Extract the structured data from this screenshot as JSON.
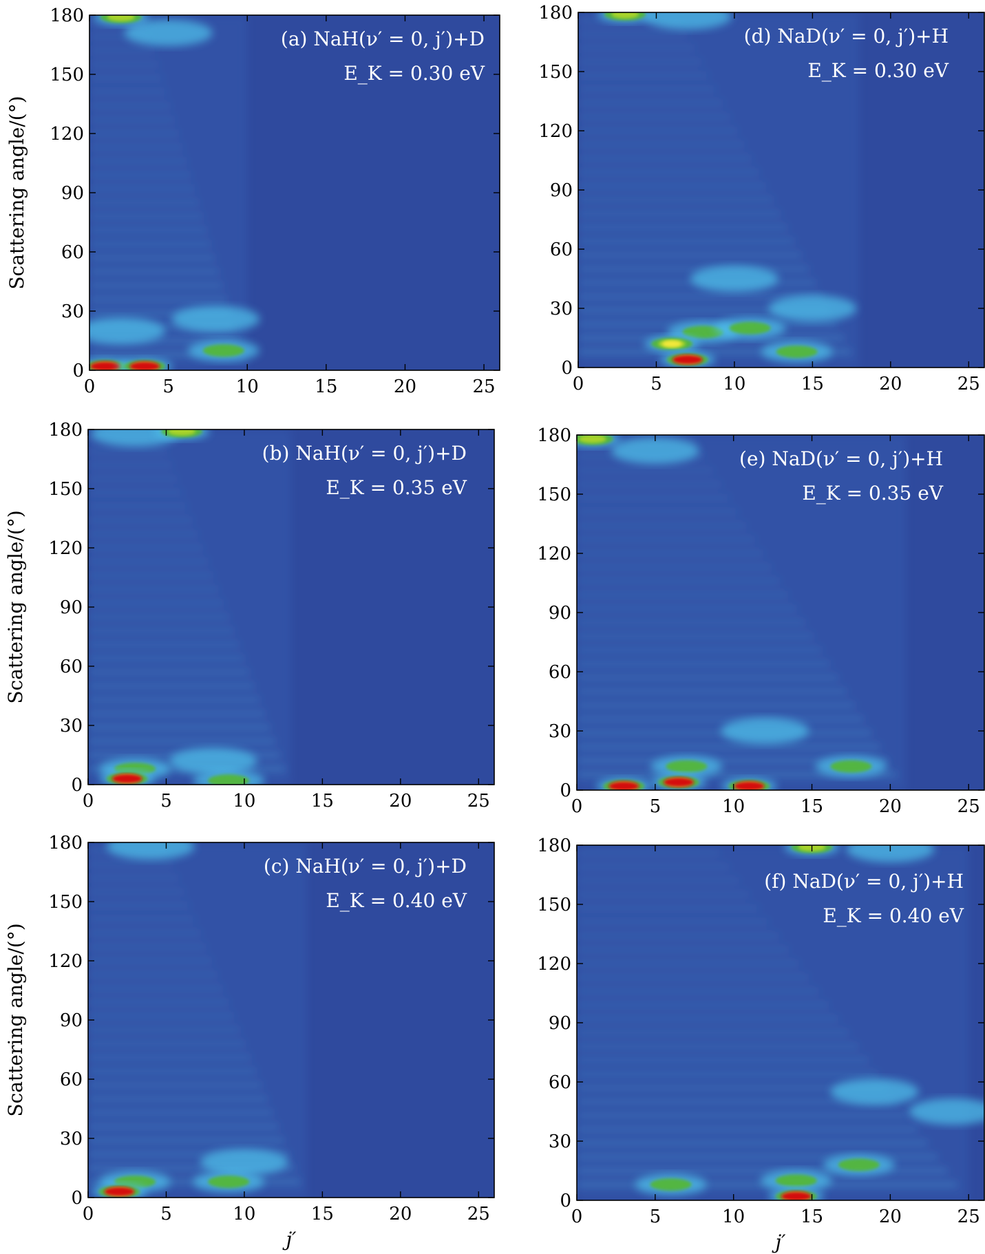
{
  "chart_data": [
    {
      "type": "heatmap",
      "panel": "a",
      "label": "(a) NaH(ν′ = 0, j′)+D",
      "energy_label": "E_K = 0.30 eV",
      "xlabel": "",
      "ylabel": "Scattering angle/(°)",
      "xlim": [
        0,
        26
      ],
      "ylim": [
        0,
        180
      ],
      "xticks": [
        0,
        5,
        10,
        15,
        20,
        25
      ],
      "yticks": [
        0,
        30,
        60,
        90,
        120,
        150,
        180
      ],
      "x_extent_of_signal": 10,
      "hotspots": [
        {
          "j": 1,
          "angle": 2,
          "level": "red"
        },
        {
          "j": 3.5,
          "angle": 2,
          "level": "red"
        },
        {
          "j": 8.5,
          "angle": 10,
          "level": "green"
        },
        {
          "j": 2,
          "angle": 20,
          "level": "light-blue"
        },
        {
          "j": 8,
          "angle": 26,
          "level": "light-blue"
        },
        {
          "j": 2,
          "angle": 179,
          "level": "yellow-green"
        },
        {
          "j": 5,
          "angle": 171,
          "level": "light-blue"
        }
      ]
    },
    {
      "type": "heatmap",
      "panel": "b",
      "label": "(b) NaH(ν′ = 0, j′)+D",
      "energy_label": "E_K = 0.35 eV",
      "xlabel": "",
      "ylabel": "Scattering angle/(°)",
      "xlim": [
        0,
        26
      ],
      "ylim": [
        0,
        180
      ],
      "xticks": [
        0,
        5,
        10,
        15,
        20,
        25
      ],
      "yticks": [
        0,
        30,
        60,
        90,
        120,
        150,
        180
      ],
      "x_extent_of_signal": 13,
      "hotspots": [
        {
          "j": 2.5,
          "angle": 3,
          "level": "red"
        },
        {
          "j": 3,
          "angle": 8,
          "level": "green"
        },
        {
          "j": 9,
          "angle": 2,
          "level": "green"
        },
        {
          "j": 8,
          "angle": 12,
          "level": "light-blue"
        },
        {
          "j": 6,
          "angle": 179,
          "level": "yellow-green"
        },
        {
          "j": 3,
          "angle": 178,
          "level": "light-blue"
        }
      ]
    },
    {
      "type": "heatmap",
      "panel": "c",
      "label": "(c) NaH(ν′ = 0, j′)+D",
      "energy_label": "E_K = 0.40 eV",
      "xlabel": "j′",
      "ylabel": "Scattering angle/(°)",
      "xlim": [
        0,
        26
      ],
      "ylim": [
        0,
        180
      ],
      "xticks": [
        0,
        5,
        10,
        15,
        20,
        25
      ],
      "yticks": [
        0,
        30,
        60,
        90,
        120,
        150,
        180
      ],
      "x_extent_of_signal": 14,
      "hotspots": [
        {
          "j": 2,
          "angle": 3,
          "level": "red"
        },
        {
          "j": 3,
          "angle": 8,
          "level": "green"
        },
        {
          "j": 9,
          "angle": 8,
          "level": "green"
        },
        {
          "j": 10,
          "angle": 18,
          "level": "light-blue"
        },
        {
          "j": 4,
          "angle": 178,
          "level": "light-blue"
        }
      ]
    },
    {
      "type": "heatmap",
      "panel": "d",
      "label": "(d) NaD(ν′ = 0, j′)+H",
      "energy_label": "E_K = 0.30 eV",
      "xlabel": "",
      "ylabel": "",
      "xlim": [
        0,
        26
      ],
      "ylim": [
        0,
        180
      ],
      "xticks": [
        0,
        5,
        10,
        15,
        20,
        25
      ],
      "yticks": [
        0,
        30,
        60,
        90,
        120,
        150,
        180
      ],
      "x_extent_of_signal": 18,
      "hotspots": [
        {
          "j": 7,
          "angle": 4,
          "level": "red"
        },
        {
          "j": 6,
          "angle": 12,
          "level": "yellow"
        },
        {
          "j": 8,
          "angle": 18,
          "level": "green"
        },
        {
          "j": 11,
          "angle": 20,
          "level": "green"
        },
        {
          "j": 14,
          "angle": 8,
          "level": "green"
        },
        {
          "j": 15,
          "angle": 30,
          "level": "light-blue"
        },
        {
          "j": 10,
          "angle": 45,
          "level": "light-blue"
        },
        {
          "j": 3,
          "angle": 179,
          "level": "yellow-green"
        },
        {
          "j": 7,
          "angle": 178,
          "level": "light-blue"
        }
      ]
    },
    {
      "type": "heatmap",
      "panel": "e",
      "label": "(e) NaD(ν′ = 0, j′)+H",
      "energy_label": "E_K = 0.35 eV",
      "xlabel": "",
      "ylabel": "",
      "xlim": [
        0,
        26
      ],
      "ylim": [
        0,
        180
      ],
      "xticks": [
        0,
        5,
        10,
        15,
        20,
        25
      ],
      "yticks": [
        0,
        30,
        60,
        90,
        120,
        150,
        180
      ],
      "x_extent_of_signal": 21,
      "hotspots": [
        {
          "j": 3,
          "angle": 2,
          "level": "red"
        },
        {
          "j": 6.5,
          "angle": 4,
          "level": "red"
        },
        {
          "j": 11,
          "angle": 2,
          "level": "red"
        },
        {
          "j": 7,
          "angle": 12,
          "level": "green"
        },
        {
          "j": 17.5,
          "angle": 12,
          "level": "green"
        },
        {
          "j": 12,
          "angle": 30,
          "level": "light-blue"
        },
        {
          "j": 1,
          "angle": 178,
          "level": "yellow-green"
        },
        {
          "j": 5,
          "angle": 172,
          "level": "light-blue"
        }
      ]
    },
    {
      "type": "heatmap",
      "panel": "f",
      "label": "(f) NaD(ν′ = 0, j′)+H",
      "energy_label": "E_K = 0.40 eV",
      "xlabel": "j′",
      "ylabel": "",
      "xlim": [
        0,
        26
      ],
      "ylim": [
        0,
        180
      ],
      "xticks": [
        0,
        5,
        10,
        15,
        20,
        25
      ],
      "yticks": [
        0,
        30,
        60,
        90,
        120,
        150,
        180
      ],
      "x_extent_of_signal": 25,
      "hotspots": [
        {
          "j": 14,
          "angle": 2,
          "level": "red"
        },
        {
          "j": 6,
          "angle": 8,
          "level": "green"
        },
        {
          "j": 14,
          "angle": 10,
          "level": "green"
        },
        {
          "j": 18,
          "angle": 18,
          "level": "green"
        },
        {
          "j": 24,
          "angle": 45,
          "level": "light-blue"
        },
        {
          "j": 19,
          "angle": 55,
          "level": "light-blue"
        },
        {
          "j": 15,
          "angle": 179,
          "level": "yellow-green"
        },
        {
          "j": 20,
          "angle": 178,
          "level": "light-blue"
        }
      ]
    }
  ],
  "colors": {
    "background": "#2f4a9e",
    "mid-blue": "#3a6cc0",
    "light-blue": "#4fc3ec",
    "green": "#55b830",
    "yellow-green": "#a8d32a",
    "yellow": "#f3e83a",
    "red": "#d40f0f"
  }
}
